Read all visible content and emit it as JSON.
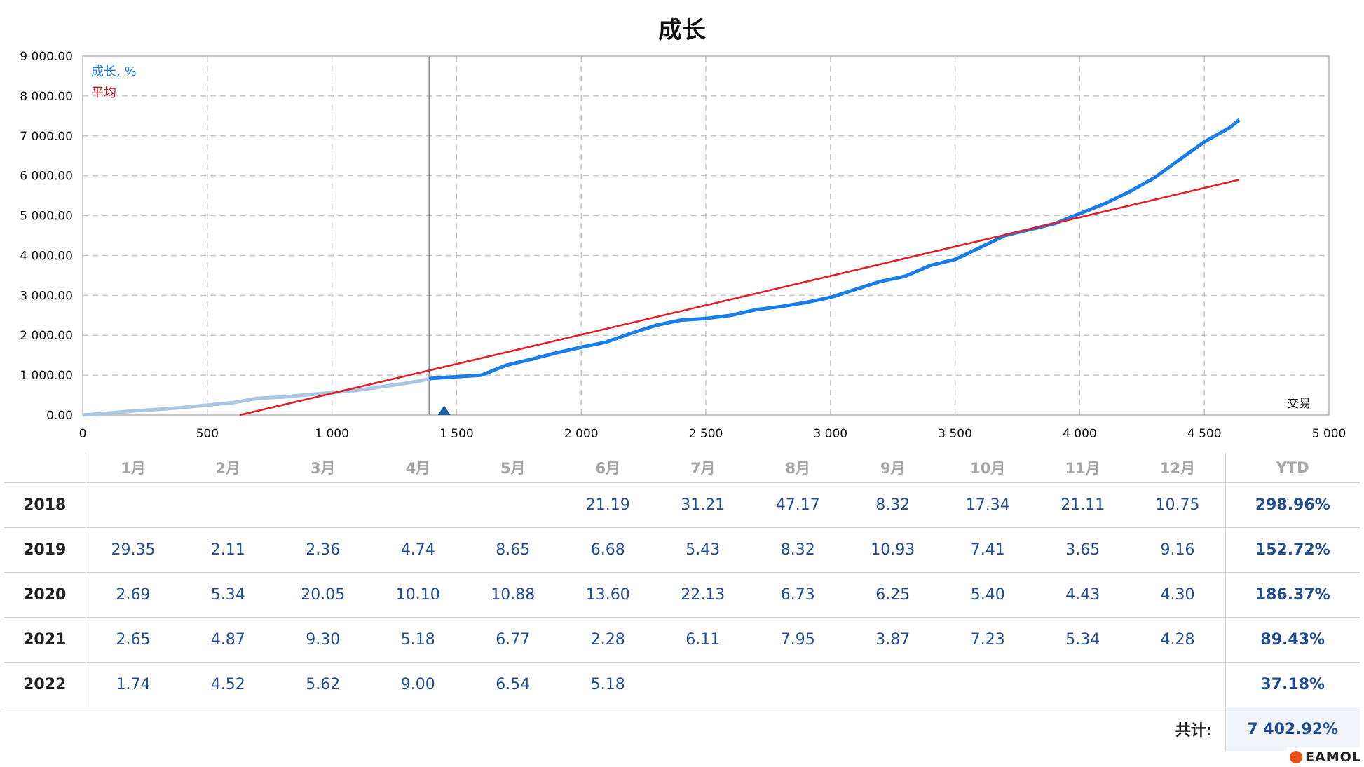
{
  "chart_data": {
    "type": "line",
    "title": "成长",
    "xlabel": "交易",
    "x_ticks": [
      "0",
      "500",
      "1 000",
      "1 500",
      "2 000",
      "2 500",
      "3 000",
      "3 500",
      "4 000",
      "4 500",
      "5 000"
    ],
    "y_ticks": [
      "0.00",
      "1 000.00",
      "2 000.00",
      "3 000.00",
      "4 000.00",
      "5 000.00",
      "6 000.00",
      "7 000.00",
      "8 000.00",
      "9 000.00"
    ],
    "xlim": [
      0,
      5000
    ],
    "ylim": [
      0,
      9000
    ],
    "grid": true,
    "legend_position": "top-left",
    "series": [
      {
        "name": "成长, %",
        "color": "#1a7ee8",
        "history_color": "#a9c6e4",
        "history_until": 1390,
        "x": [
          0,
          100,
          200,
          300,
          400,
          500,
          600,
          700,
          800,
          900,
          1000,
          1100,
          1200,
          1300,
          1390,
          1400,
          1500,
          1600,
          1700,
          1800,
          1900,
          2000,
          2100,
          2200,
          2300,
          2400,
          2500,
          2600,
          2700,
          2800,
          2900,
          3000,
          3100,
          3200,
          3300,
          3400,
          3500,
          3600,
          3700,
          3800,
          3900,
          4000,
          4100,
          4200,
          4300,
          4400,
          4500,
          4600,
          4640
        ],
        "y": [
          0,
          50,
          100,
          140,
          190,
          250,
          310,
          420,
          450,
          510,
          560,
          620,
          710,
          800,
          900,
          920,
          960,
          1000,
          1250,
          1400,
          1560,
          1700,
          1830,
          2050,
          2250,
          2380,
          2420,
          2500,
          2640,
          2720,
          2820,
          2950,
          3150,
          3350,
          3480,
          3750,
          3900,
          4200,
          4500,
          4650,
          4800,
          5050,
          5300,
          5600,
          5950,
          6400,
          6850,
          7200,
          7400
        ]
      },
      {
        "name": "平均",
        "color": "#e31b23",
        "x": [
          630,
          4640
        ],
        "y": [
          0,
          5900
        ]
      }
    ],
    "marker": {
      "type": "triangle",
      "x": 1450
    },
    "cursor_x": 1390
  },
  "table": {
    "months": [
      "1月",
      "2月",
      "3月",
      "4月",
      "5月",
      "6月",
      "7月",
      "8月",
      "9月",
      "10月",
      "11月",
      "12月"
    ],
    "ytd_label": "YTD",
    "rows": [
      {
        "year": "2018",
        "values": [
          "",
          "",
          "",
          "",
          "",
          "21.19",
          "31.21",
          "47.17",
          "8.32",
          "17.34",
          "21.11",
          "10.75"
        ],
        "ytd": "298.96%"
      },
      {
        "year": "2019",
        "values": [
          "29.35",
          "2.11",
          "2.36",
          "4.74",
          "8.65",
          "6.68",
          "5.43",
          "8.32",
          "10.93",
          "7.41",
          "3.65",
          "9.16"
        ],
        "ytd": "152.72%"
      },
      {
        "year": "2020",
        "values": [
          "2.69",
          "5.34",
          "20.05",
          "10.10",
          "10.88",
          "13.60",
          "22.13",
          "6.73",
          "6.25",
          "5.40",
          "4.43",
          "4.30"
        ],
        "ytd": "186.37%"
      },
      {
        "year": "2021",
        "values": [
          "2.65",
          "4.87",
          "9.30",
          "5.18",
          "6.77",
          "2.28",
          "6.11",
          "7.95",
          "3.87",
          "7.23",
          "5.34",
          "4.28"
        ],
        "ytd": "89.43%"
      },
      {
        "year": "2022",
        "values": [
          "1.74",
          "4.52",
          "5.62",
          "9.00",
          "6.54",
          "5.18",
          "",
          "",
          "",
          "",
          "",
          ""
        ],
        "ytd": "37.18%"
      }
    ],
    "total_label": "共计:",
    "total_value": "7 402.92%"
  },
  "watermark": {
    "text": "EAMOL",
    "icon": "eamol-logo-icon"
  }
}
